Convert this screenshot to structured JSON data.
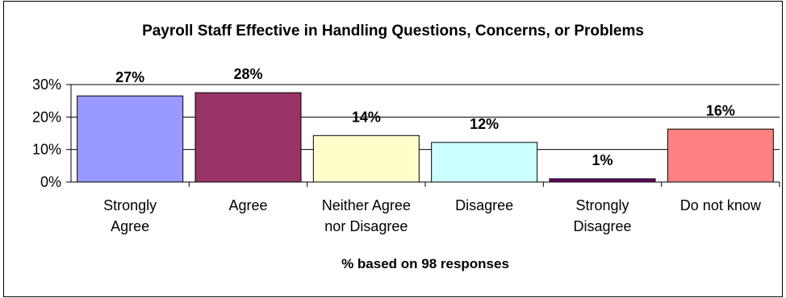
{
  "chart_data": {
    "type": "bar",
    "title": "Payroll Staff Effective in Handling Questions, Concerns, or Problems",
    "xlabel": "% based on 98 responses",
    "ylabel": "",
    "ylim": [
      0,
      30
    ],
    "yticks": [
      "0%",
      "10%",
      "20%",
      "30%"
    ],
    "grid": true,
    "legend": "none",
    "categories": [
      [
        "Strongly",
        "Agree"
      ],
      [
        "Agree"
      ],
      [
        "Neither Agree",
        "nor Disagree"
      ],
      [
        "Disagree"
      ],
      [
        "Strongly",
        "Disagree"
      ],
      [
        "Do not know"
      ]
    ],
    "values": [
      26.5,
      27.5,
      14.3,
      12.2,
      1.0,
      16.3
    ],
    "data_labels": [
      "27%",
      "28%",
      "14%",
      "12%",
      "1%",
      "16%"
    ],
    "colors": [
      "#9999ff",
      "#993366",
      "#ffffcc",
      "#ccffff",
      "#660066",
      "#ff8080"
    ]
  }
}
